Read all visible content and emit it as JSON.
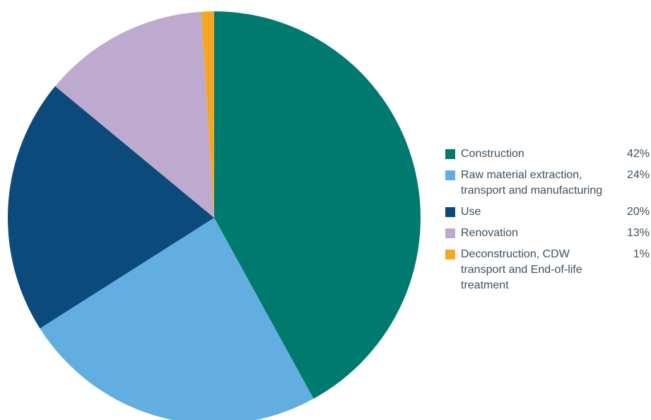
{
  "chart_data": {
    "type": "pie",
    "categories": [
      "Construction",
      "Raw material extraction, transport and manufacturing",
      "Use",
      "Renovation",
      "Deconstruction, CDW transport and End-of-life treatment"
    ],
    "values": [
      42,
      24,
      20,
      13,
      1
    ],
    "value_labels": [
      "42%",
      "24%",
      "20%",
      "13%",
      "1%"
    ],
    "colors": [
      "#007a6e",
      "#62aee0",
      "#0b4a7a",
      "#bfaacf",
      "#f5a623"
    ]
  }
}
